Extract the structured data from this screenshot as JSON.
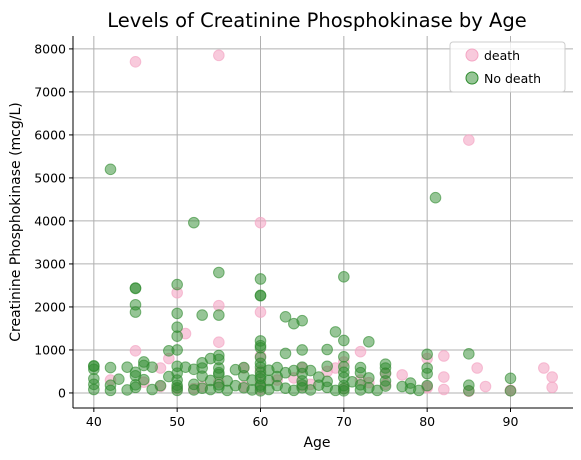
{
  "chart_data": {
    "type": "scatter",
    "title": "Levels of Creatinine Phosphokinase by Age",
    "xlabel": "Age",
    "ylabel": "Creatinine Phosphokinase (mcg/L)",
    "xlim": [
      37.5,
      97.5
    ],
    "ylim": [
      -350,
      8300
    ],
    "xticks": [
      40,
      50,
      60,
      70,
      80,
      90
    ],
    "yticks": [
      0,
      1000,
      2000,
      3000,
      4000,
      5000,
      6000,
      7000,
      8000
    ],
    "grid": true,
    "legend_position": "top-right",
    "series": [
      {
        "name": "death",
        "color": "#f4a6c4",
        "points": [
          [
            45,
            7700
          ],
          [
            55,
            7850
          ],
          [
            85,
            5880
          ],
          [
            60,
            3960
          ],
          [
            50,
            2330
          ],
          [
            55,
            2030
          ],
          [
            60,
            1880
          ],
          [
            51,
            1380
          ],
          [
            55,
            1180
          ],
          [
            45,
            980
          ],
          [
            72,
            960
          ],
          [
            49,
            800
          ],
          [
            80,
            800
          ],
          [
            82,
            860
          ],
          [
            60,
            860
          ],
          [
            70,
            720
          ],
          [
            48,
            580
          ],
          [
            69,
            580
          ],
          [
            94,
            580
          ],
          [
            86,
            580
          ],
          [
            65,
            580
          ],
          [
            60,
            520
          ],
          [
            77,
            420
          ],
          [
            95,
            370
          ],
          [
            42,
            300
          ],
          [
            82,
            370
          ],
          [
            72,
            300
          ],
          [
            75,
            200
          ],
          [
            60,
            250
          ],
          [
            65,
            160
          ],
          [
            80,
            150
          ],
          [
            87,
            150
          ],
          [
            95,
            130
          ],
          [
            90,
            60
          ],
          [
            85,
            40
          ],
          [
            73,
            240
          ],
          [
            58,
            150
          ],
          [
            50,
            100
          ],
          [
            55,
            250
          ],
          [
            62,
            300
          ],
          [
            68,
            500
          ],
          [
            75,
            450
          ],
          [
            53,
            150
          ],
          [
            46,
            250
          ],
          [
            64,
            350
          ],
          [
            70,
            100
          ],
          [
            82,
            80
          ],
          [
            80,
            120
          ],
          [
            52,
            100
          ],
          [
            66,
            200
          ],
          [
            48,
            150
          ],
          [
            60,
            80
          ],
          [
            58,
            580
          ],
          [
            90,
            60
          ]
        ]
      },
      {
        "name": "No death",
        "color": "#2e8b2e",
        "points": [
          [
            42,
            5200
          ],
          [
            81,
            4540
          ],
          [
            52,
            3960
          ],
          [
            55,
            2800
          ],
          [
            70,
            2700
          ],
          [
            60,
            2650
          ],
          [
            50,
            2520
          ],
          [
            45,
            2440
          ],
          [
            60,
            2270
          ],
          [
            60,
            2260
          ],
          [
            45,
            2050
          ],
          [
            45,
            1880
          ],
          [
            50,
            1850
          ],
          [
            53,
            1810
          ],
          [
            55,
            1810
          ],
          [
            63,
            1770
          ],
          [
            65,
            1680
          ],
          [
            64,
            1610
          ],
          [
            50,
            1530
          ],
          [
            69,
            1420
          ],
          [
            50,
            1320
          ],
          [
            60,
            1210
          ],
          [
            73,
            1190
          ],
          [
            70,
            1220
          ],
          [
            60,
            1050
          ],
          [
            49,
            980
          ],
          [
            68,
            1010
          ],
          [
            80,
            900
          ],
          [
            85,
            910
          ],
          [
            63,
            920
          ],
          [
            55,
            870
          ],
          [
            60,
            830
          ],
          [
            70,
            840
          ],
          [
            55,
            780
          ],
          [
            46,
            720
          ],
          [
            53,
            700
          ],
          [
            60,
            690
          ],
          [
            75,
            670
          ],
          [
            40,
            630
          ],
          [
            42,
            590
          ],
          [
            44,
            600
          ],
          [
            47,
            600
          ],
          [
            50,
            620
          ],
          [
            51,
            600
          ],
          [
            53,
            580
          ],
          [
            55,
            580
          ],
          [
            58,
            590
          ],
          [
            60,
            600
          ],
          [
            62,
            590
          ],
          [
            65,
            600
          ],
          [
            68,
            620
          ],
          [
            70,
            610
          ],
          [
            72,
            590
          ],
          [
            75,
            580
          ],
          [
            80,
            580
          ],
          [
            40,
            550
          ],
          [
            52,
            550
          ],
          [
            57,
            540
          ],
          [
            61,
            530
          ],
          [
            64,
            520
          ],
          [
            66,
            520
          ],
          [
            45,
            480
          ],
          [
            50,
            460
          ],
          [
            55,
            470
          ],
          [
            60,
            480
          ],
          [
            63,
            470
          ],
          [
            65,
            450
          ],
          [
            70,
            480
          ],
          [
            72,
            470
          ],
          [
            75,
            460
          ],
          [
            80,
            450
          ],
          [
            45,
            400
          ],
          [
            49,
            380
          ],
          [
            53,
            390
          ],
          [
            58,
            400
          ],
          [
            60,
            390
          ],
          [
            62,
            380
          ],
          [
            67,
            370
          ],
          [
            70,
            360
          ],
          [
            73,
            350
          ],
          [
            40,
            330
          ],
          [
            43,
            320
          ],
          [
            46,
            310
          ],
          [
            50,
            300
          ],
          [
            54,
            290
          ],
          [
            56,
            280
          ],
          [
            59,
            300
          ],
          [
            61,
            290
          ],
          [
            65,
            280
          ],
          [
            68,
            270
          ],
          [
            71,
            260
          ],
          [
            75,
            280
          ],
          [
            90,
            340
          ],
          [
            78,
            230
          ],
          [
            40,
            200
          ],
          [
            42,
            180
          ],
          [
            45,
            190
          ],
          [
            48,
            170
          ],
          [
            50,
            180
          ],
          [
            52,
            200
          ],
          [
            55,
            190
          ],
          [
            57,
            170
          ],
          [
            60,
            180
          ],
          [
            62,
            170
          ],
          [
            65,
            190
          ],
          [
            67,
            180
          ],
          [
            70,
            170
          ],
          [
            72,
            190
          ],
          [
            75,
            160
          ],
          [
            77,
            150
          ],
          [
            80,
            170
          ],
          [
            85,
            180
          ],
          [
            45,
            130
          ],
          [
            50,
            120
          ],
          [
            53,
            110
          ],
          [
            55,
            130
          ],
          [
            58,
            120
          ],
          [
            60,
            140
          ],
          [
            63,
            110
          ],
          [
            65,
            120
          ],
          [
            68,
            130
          ],
          [
            70,
            100
          ],
          [
            73,
            120
          ],
          [
            78,
            100
          ],
          [
            40,
            80
          ],
          [
            42,
            60
          ],
          [
            44,
            70
          ],
          [
            47,
            80
          ],
          [
            50,
            60
          ],
          [
            52,
            70
          ],
          [
            54,
            80
          ],
          [
            56,
            60
          ],
          [
            59,
            70
          ],
          [
            60,
            50
          ],
          [
            61,
            80
          ],
          [
            64,
            60
          ],
          [
            66,
            70
          ],
          [
            69,
            60
          ],
          [
            70,
            50
          ],
          [
            72,
            70
          ],
          [
            74,
            60
          ],
          [
            79,
            60
          ],
          [
            85,
            50
          ],
          [
            90,
            50
          ],
          [
            60,
            330
          ],
          [
            55,
            430
          ],
          [
            50,
            1000
          ],
          [
            65,
            1000
          ],
          [
            45,
            2430
          ],
          [
            40,
            620
          ],
          [
            60,
            1100
          ],
          [
            46,
            640
          ],
          [
            54,
            800
          ]
        ]
      }
    ]
  }
}
